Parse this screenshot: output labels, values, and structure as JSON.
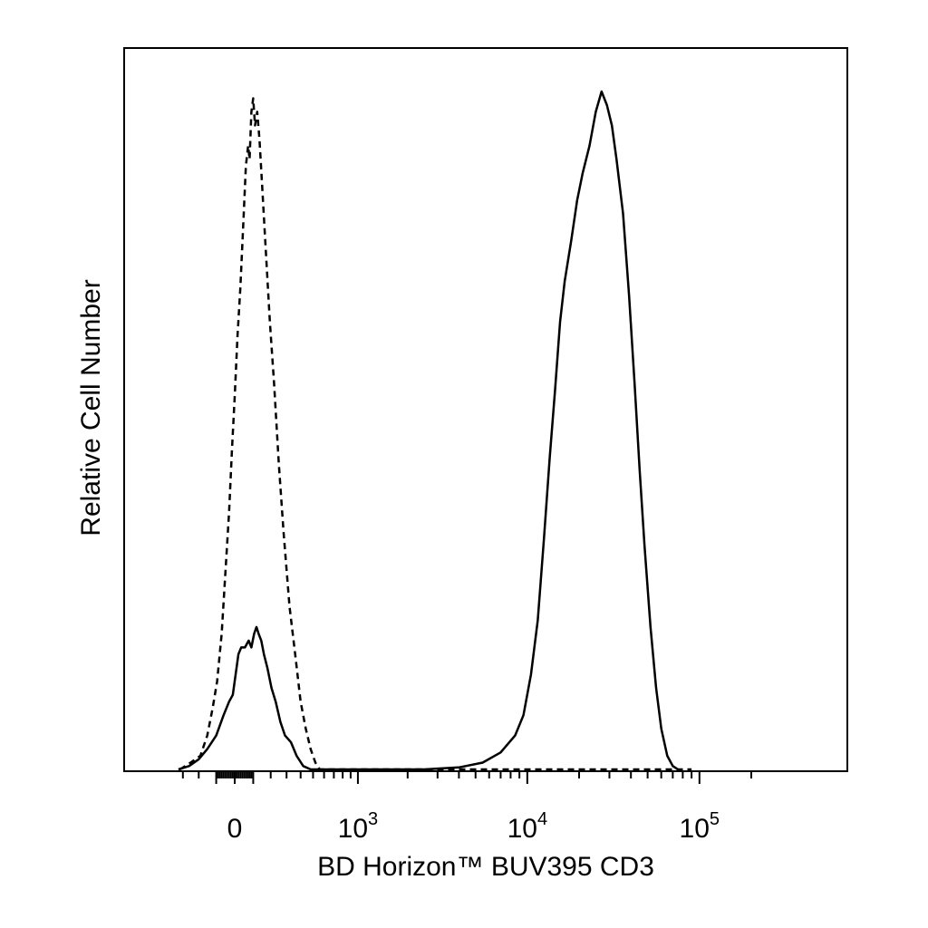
{
  "chart_data": {
    "type": "line",
    "title": "",
    "xlabel": "BD Horizon™ BUV395 CD3",
    "ylabel": "Relative Cell Number",
    "x_scale": "biexponential",
    "xlim": [
      -400,
      230000
    ],
    "ylim": [
      0,
      100
    ],
    "grid": false,
    "legend": "none",
    "x_tick_labels": [
      {
        "value": 0,
        "base": "0",
        "exp": ""
      },
      {
        "value": 1000,
        "base": "10",
        "exp": "3"
      },
      {
        "value": 10000,
        "base": "10",
        "exp": "4"
      },
      {
        "value": 100000,
        "base": "10",
        "exp": "5"
      }
    ],
    "series": [
      {
        "style": "dashed",
        "color": "#000000",
        "points": [
          [
            -320,
            0
          ],
          [
            -250,
            1
          ],
          [
            -190,
            2
          ],
          [
            -150,
            5
          ],
          [
            -120,
            9
          ],
          [
            -95,
            13
          ],
          [
            -70,
            20
          ],
          [
            -50,
            29
          ],
          [
            -30,
            38
          ],
          [
            -15,
            47
          ],
          [
            0,
            55
          ],
          [
            15,
            64
          ],
          [
            30,
            71
          ],
          [
            45,
            80
          ],
          [
            60,
            89
          ],
          [
            72,
            92
          ],
          [
            80,
            90
          ],
          [
            90,
            97
          ],
          [
            100,
            99
          ],
          [
            110,
            95
          ],
          [
            122,
            97
          ],
          [
            135,
            93
          ],
          [
            150,
            86
          ],
          [
            170,
            77
          ],
          [
            195,
            66
          ],
          [
            220,
            57
          ],
          [
            250,
            45
          ],
          [
            280,
            35
          ],
          [
            320,
            24
          ],
          [
            360,
            17
          ],
          [
            400,
            10
          ],
          [
            440,
            6
          ],
          [
            480,
            3
          ],
          [
            520,
            1
          ],
          [
            560,
            0
          ],
          [
            700,
            0
          ],
          [
            3000,
            0
          ],
          [
            6000,
            0
          ],
          [
            20000,
            0
          ],
          [
            60000,
            0
          ],
          [
            90000,
            0
          ]
        ]
      },
      {
        "style": "solid",
        "color": "#000000",
        "points": [
          [
            -330,
            0
          ],
          [
            -260,
            0.5
          ],
          [
            -200,
            1.5
          ],
          [
            -150,
            3
          ],
          [
            -100,
            5
          ],
          [
            -60,
            8
          ],
          [
            -30,
            10
          ],
          [
            -10,
            11
          ],
          [
            5,
            14
          ],
          [
            20,
            17
          ],
          [
            35,
            18
          ],
          [
            55,
            18
          ],
          [
            75,
            19
          ],
          [
            90,
            18
          ],
          [
            105,
            20
          ],
          [
            118,
            21
          ],
          [
            130,
            20
          ],
          [
            145,
            19
          ],
          [
            160,
            17
          ],
          [
            180,
            15
          ],
          [
            205,
            12
          ],
          [
            230,
            10
          ],
          [
            260,
            7
          ],
          [
            290,
            5
          ],
          [
            330,
            4
          ],
          [
            370,
            2
          ],
          [
            420,
            0.5
          ],
          [
            480,
            0
          ],
          [
            1000,
            0
          ],
          [
            2500,
            0
          ],
          [
            4000,
            0.3
          ],
          [
            5500,
            1
          ],
          [
            7000,
            2.5
          ],
          [
            8500,
            5
          ],
          [
            9500,
            8
          ],
          [
            10500,
            14
          ],
          [
            11500,
            22
          ],
          [
            12500,
            34
          ],
          [
            13500,
            46
          ],
          [
            14500,
            56
          ],
          [
            15500,
            66
          ],
          [
            16500,
            72
          ],
          [
            18000,
            78
          ],
          [
            19500,
            84
          ],
          [
            21000,
            88
          ],
          [
            23000,
            92
          ],
          [
            25000,
            97
          ],
          [
            27000,
            100
          ],
          [
            29000,
            98
          ],
          [
            31000,
            95
          ],
          [
            33000,
            90
          ],
          [
            36000,
            82
          ],
          [
            39000,
            70
          ],
          [
            42000,
            57
          ],
          [
            45000,
            44
          ],
          [
            48000,
            33
          ],
          [
            52000,
            21
          ],
          [
            56000,
            12
          ],
          [
            60000,
            6
          ],
          [
            65000,
            2
          ],
          [
            70000,
            0.5
          ],
          [
            75000,
            0
          ]
        ]
      }
    ]
  }
}
